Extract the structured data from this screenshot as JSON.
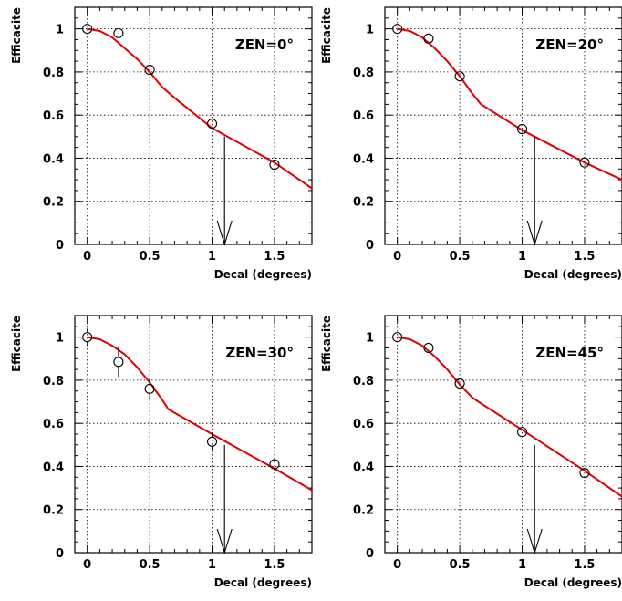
{
  "chart_data": [
    {
      "type": "scatter",
      "annotation": "ZEN=0°",
      "xlabel": "Decal (degrees)",
      "ylabel": "Efficacite",
      "xlim": [
        -0.1,
        1.8
      ],
      "ylim": [
        0,
        1.1
      ],
      "xticks": [
        0,
        0.5,
        1,
        1.5
      ],
      "xtick_labels": [
        "0",
        "0.5",
        "1",
        "1.5"
      ],
      "yticks": [
        0,
        0.2,
        0.4,
        0.6,
        0.8,
        1
      ],
      "ytick_labels": [
        "0",
        "0.2",
        "0.4",
        "0.6",
        "0.8",
        "1"
      ],
      "grid": true,
      "colors": {
        "curve": "#e00000",
        "points": "#000000"
      },
      "points": [
        {
          "x": 0,
          "y": 1.0,
          "err": 0.01
        },
        {
          "x": 0.25,
          "y": 0.98,
          "err": 0.01
        },
        {
          "x": 0.5,
          "y": 0.81,
          "err": 0.015
        },
        {
          "x": 1.0,
          "y": 0.56,
          "err": 0.015
        },
        {
          "x": 1.5,
          "y": 0.37,
          "err": 0.015
        }
      ],
      "fit_curve": {
        "x": [
          0,
          0.1,
          0.2,
          0.3,
          0.4,
          0.5,
          0.6,
          0.7,
          1.0,
          1.5,
          1.8
        ],
        "y": [
          1.0,
          0.99,
          0.96,
          0.91,
          0.86,
          0.8,
          0.73,
          0.68,
          0.54,
          0.38,
          0.26
        ]
      },
      "arrow": {
        "x": 1.1,
        "y_from": 0.5,
        "y_to": 0
      }
    },
    {
      "type": "scatter",
      "annotation": "ZEN=20°",
      "xlabel": "Decal (degrees)",
      "ylabel": "Efficacite",
      "xlim": [
        -0.1,
        1.8
      ],
      "ylim": [
        0,
        1.1
      ],
      "xticks": [
        0,
        0.5,
        1,
        1.5
      ],
      "xtick_labels": [
        "0",
        "0.5",
        "1",
        "1.5"
      ],
      "yticks": [
        0,
        0.2,
        0.4,
        0.6,
        0.8,
        1
      ],
      "ytick_labels": [
        "0",
        "0.2",
        "0.4",
        "0.6",
        "0.8",
        "1"
      ],
      "grid": true,
      "colors": {
        "curve": "#e00000",
        "points": "#000000"
      },
      "points": [
        {
          "x": 0,
          "y": 1.0,
          "err": 0.01
        },
        {
          "x": 0.25,
          "y": 0.955,
          "err": 0.012
        },
        {
          "x": 0.5,
          "y": 0.78,
          "err": 0.015
        },
        {
          "x": 1.0,
          "y": 0.535,
          "err": 0.015
        },
        {
          "x": 1.5,
          "y": 0.38,
          "err": 0.015
        }
      ],
      "fit_curve": {
        "x": [
          0,
          0.1,
          0.2,
          0.3,
          0.4,
          0.5,
          0.6,
          0.67,
          1.0,
          1.5,
          1.8
        ],
        "y": [
          1.0,
          0.99,
          0.96,
          0.91,
          0.85,
          0.78,
          0.7,
          0.65,
          0.53,
          0.38,
          0.3
        ]
      },
      "arrow": {
        "x": 1.1,
        "y_from": 0.5,
        "y_to": 0
      }
    },
    {
      "type": "scatter",
      "annotation": "ZEN=30°",
      "xlabel": "Decal (degrees)",
      "ylabel": "Efficacite",
      "xlim": [
        -0.1,
        1.8
      ],
      "ylim": [
        0,
        1.1
      ],
      "xticks": [
        0,
        0.5,
        1,
        1.5
      ],
      "xtick_labels": [
        "0",
        "0.5",
        "1",
        "1.5"
      ],
      "yticks": [
        0,
        0.2,
        0.4,
        0.6,
        0.8,
        1
      ],
      "ytick_labels": [
        "0",
        "0.2",
        "0.4",
        "0.6",
        "0.8",
        "1"
      ],
      "grid": true,
      "colors": {
        "curve": "#e00000",
        "points": "#000000"
      },
      "points": [
        {
          "x": 0,
          "y": 1.0,
          "err": 0.04
        },
        {
          "x": 0.25,
          "y": 0.885,
          "err": 0.07
        },
        {
          "x": 0.5,
          "y": 0.76,
          "err": 0.05
        },
        {
          "x": 1.0,
          "y": 0.515,
          "err": 0.04
        },
        {
          "x": 1.5,
          "y": 0.41,
          "err": 0.03
        }
      ],
      "fit_curve": {
        "x": [
          0,
          0.1,
          0.2,
          0.3,
          0.4,
          0.5,
          0.6,
          0.65,
          1.0,
          1.5,
          1.8
        ],
        "y": [
          1.0,
          0.99,
          0.96,
          0.92,
          0.86,
          0.79,
          0.71,
          0.665,
          0.55,
          0.39,
          0.29
        ]
      },
      "arrow": {
        "x": 1.1,
        "y_from": 0.5,
        "y_to": 0
      }
    },
    {
      "type": "scatter",
      "annotation": "ZEN=45°",
      "xlabel": "Decal (degrees)",
      "ylabel": "Efficacite",
      "xlim": [
        -0.1,
        1.8
      ],
      "ylim": [
        0,
        1.1
      ],
      "xticks": [
        0,
        0.5,
        1,
        1.5
      ],
      "xtick_labels": [
        "0",
        "0.5",
        "1",
        "1.5"
      ],
      "yticks": [
        0,
        0.2,
        0.4,
        0.6,
        0.8,
        1
      ],
      "ytick_labels": [
        "0",
        "0.2",
        "0.4",
        "0.6",
        "0.8",
        "1"
      ],
      "grid": true,
      "colors": {
        "curve": "#e00000",
        "points": "#000000"
      },
      "points": [
        {
          "x": 0,
          "y": 1.0,
          "err": 0.01
        },
        {
          "x": 0.25,
          "y": 0.95,
          "err": 0.012
        },
        {
          "x": 0.5,
          "y": 0.785,
          "err": 0.015
        },
        {
          "x": 1.0,
          "y": 0.56,
          "err": 0.015
        },
        {
          "x": 1.5,
          "y": 0.37,
          "err": 0.015
        }
      ],
      "fit_curve": {
        "x": [
          0,
          0.1,
          0.2,
          0.3,
          0.4,
          0.5,
          0.6,
          0.65,
          1.0,
          1.5,
          1.8
        ],
        "y": [
          1.0,
          0.99,
          0.96,
          0.91,
          0.85,
          0.78,
          0.72,
          0.7,
          0.57,
          0.38,
          0.26
        ]
      },
      "arrow": {
        "x": 1.1,
        "y_from": 0.5,
        "y_to": 0
      }
    }
  ]
}
